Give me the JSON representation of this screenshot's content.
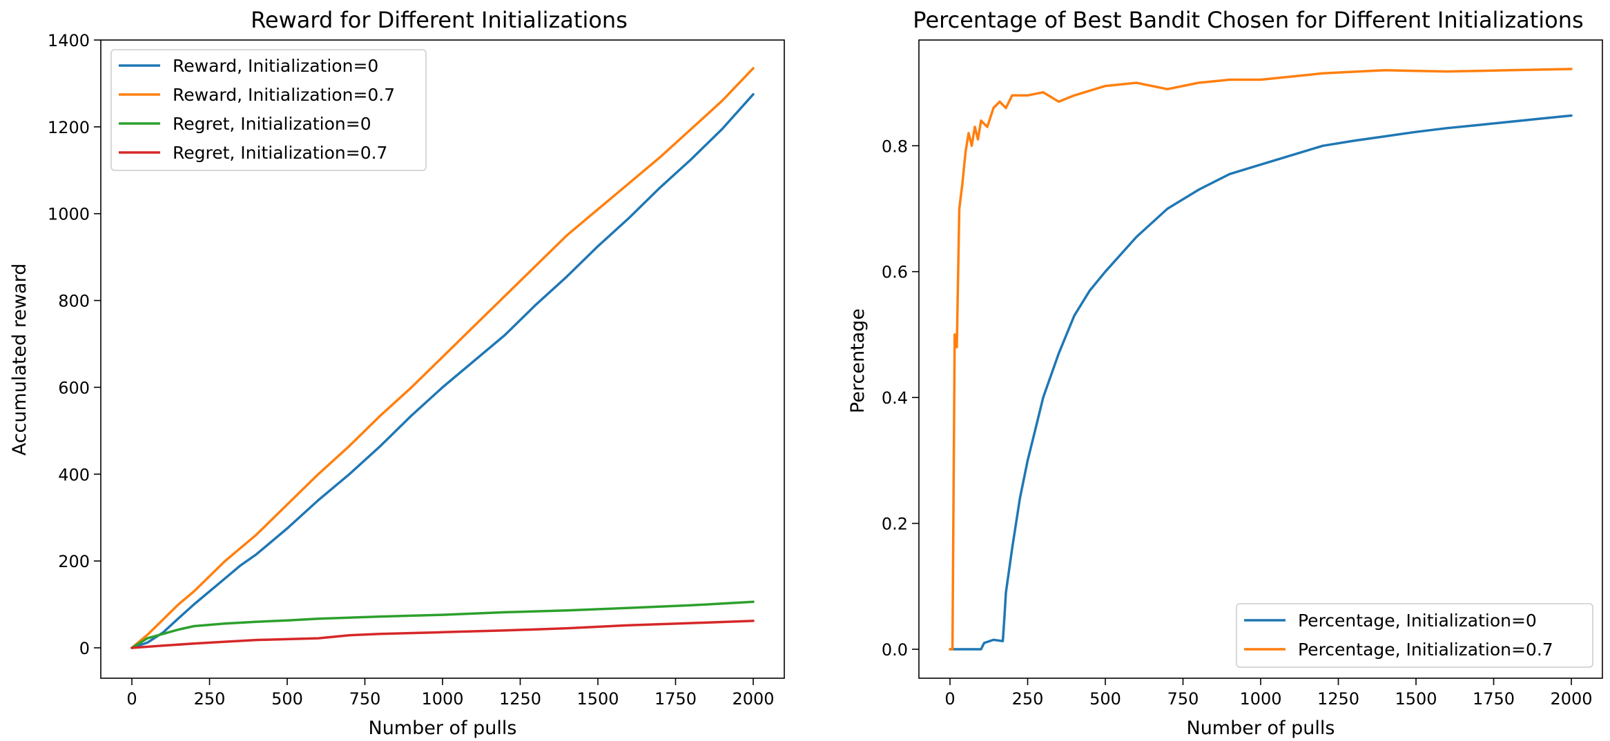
{
  "chart_data": [
    {
      "type": "line",
      "title": "Reward for Different Initializations",
      "xlabel": "Number of pulls",
      "ylabel": "Accumulated reward",
      "xlim": [
        -100,
        2100
      ],
      "ylim": [
        -70,
        1400
      ],
      "xticks": [
        0,
        250,
        500,
        750,
        1000,
        1250,
        1500,
        1750,
        2000
      ],
      "xtick_labels": [
        "0",
        "250",
        "500",
        "750",
        "1000",
        "1250",
        "1500",
        "1750",
        "2000"
      ],
      "yticks": [
        0,
        200,
        400,
        600,
        800,
        1000,
        1200,
        1400
      ],
      "ytick_labels": [
        "0",
        "200",
        "400",
        "600",
        "800",
        "1000",
        "1200",
        "1400"
      ],
      "grid": false,
      "legend_position": "top-left",
      "series": [
        {
          "name": "Reward, Initialization=0",
          "color": "#1f77b4",
          "x": [
            0,
            50,
            100,
            150,
            200,
            250,
            300,
            350,
            400,
            500,
            600,
            700,
            800,
            900,
            1000,
            1100,
            1200,
            1300,
            1400,
            1500,
            1600,
            1700,
            1800,
            1900,
            2000
          ],
          "y": [
            0,
            12,
            35,
            68,
            100,
            130,
            160,
            190,
            215,
            275,
            340,
            400,
            465,
            535,
            600,
            660,
            720,
            790,
            855,
            925,
            990,
            1060,
            1125,
            1195,
            1275
          ]
        },
        {
          "name": "Reward, Initialization=0.7",
          "color": "#ff7f0e",
          "x": [
            0,
            50,
            100,
            150,
            200,
            250,
            300,
            350,
            400,
            500,
            600,
            700,
            800,
            900,
            1000,
            1100,
            1200,
            1300,
            1400,
            1500,
            1600,
            1700,
            1800,
            1900,
            2000
          ],
          "y": [
            0,
            30,
            65,
            100,
            130,
            165,
            200,
            230,
            260,
            330,
            400,
            465,
            535,
            600,
            670,
            740,
            810,
            880,
            950,
            1010,
            1070,
            1130,
            1195,
            1260,
            1335
          ]
        },
        {
          "name": "Regret, Initialization=0",
          "color": "#2ca02c",
          "x": [
            0,
            50,
            100,
            150,
            200,
            300,
            400,
            500,
            600,
            800,
            1000,
            1200,
            1400,
            1600,
            1800,
            2000
          ],
          "y": [
            0,
            22,
            32,
            42,
            50,
            56,
            60,
            63,
            67,
            72,
            76,
            82,
            86,
            92,
            98,
            106
          ]
        },
        {
          "name": "Regret, Initialization=0.7",
          "color": "#d62728",
          "x": [
            0,
            100,
            200,
            300,
            400,
            500,
            600,
            700,
            800,
            1000,
            1200,
            1400,
            1600,
            1800,
            2000
          ],
          "y": [
            0,
            5,
            10,
            14,
            18,
            20,
            22,
            29,
            32,
            36,
            40,
            45,
            52,
            57,
            62
          ]
        }
      ]
    },
    {
      "type": "line",
      "title": "Percentage of Best Bandit Chosen for Different Initializations",
      "xlabel": "Number of pulls",
      "ylabel": "Percentage",
      "xlim": [
        -100,
        2100
      ],
      "ylim": [
        -0.046,
        0.968
      ],
      "xticks": [
        0,
        250,
        500,
        750,
        1000,
        1250,
        1500,
        1750,
        2000
      ],
      "xtick_labels": [
        "0",
        "250",
        "500",
        "750",
        "1000",
        "1250",
        "1500",
        "1750",
        "2000"
      ],
      "yticks": [
        0.0,
        0.2,
        0.4,
        0.6,
        0.8
      ],
      "ytick_labels": [
        "0.0",
        "0.2",
        "0.4",
        "0.6",
        "0.8"
      ],
      "grid": false,
      "legend_position": "bottom-right",
      "series": [
        {
          "name": "Percentage, Initialization=0",
          "color": "#1f77b4",
          "x": [
            0,
            100,
            110,
            140,
            170,
            175,
            180,
            200,
            225,
            250,
            275,
            300,
            350,
            400,
            450,
            500,
            600,
            700,
            800,
            900,
            1000,
            1100,
            1200,
            1300,
            1400,
            1500,
            1600,
            1700,
            1800,
            1900,
            2000
          ],
          "y": [
            0.0,
            0.0,
            0.01,
            0.015,
            0.013,
            0.05,
            0.09,
            0.16,
            0.24,
            0.3,
            0.35,
            0.4,
            0.47,
            0.53,
            0.57,
            0.6,
            0.655,
            0.7,
            0.73,
            0.755,
            0.77,
            0.785,
            0.8,
            0.808,
            0.815,
            0.822,
            0.828,
            0.833,
            0.838,
            0.843,
            0.848
          ]
        },
        {
          "name": "Percentage, Initialization=0.7",
          "color": "#ff7f0e",
          "x": [
            0,
            8,
            15,
            22,
            30,
            40,
            50,
            60,
            70,
            80,
            90,
            100,
            120,
            140,
            160,
            180,
            200,
            250,
            300,
            350,
            400,
            500,
            600,
            700,
            800,
            900,
            1000,
            1200,
            1400,
            1600,
            1800,
            2000
          ],
          "y": [
            0.0,
            0.0,
            0.5,
            0.48,
            0.7,
            0.74,
            0.79,
            0.82,
            0.8,
            0.83,
            0.81,
            0.84,
            0.83,
            0.86,
            0.87,
            0.86,
            0.88,
            0.88,
            0.885,
            0.87,
            0.88,
            0.895,
            0.9,
            0.89,
            0.9,
            0.905,
            0.905,
            0.915,
            0.92,
            0.918,
            0.92,
            0.922
          ]
        }
      ]
    }
  ]
}
